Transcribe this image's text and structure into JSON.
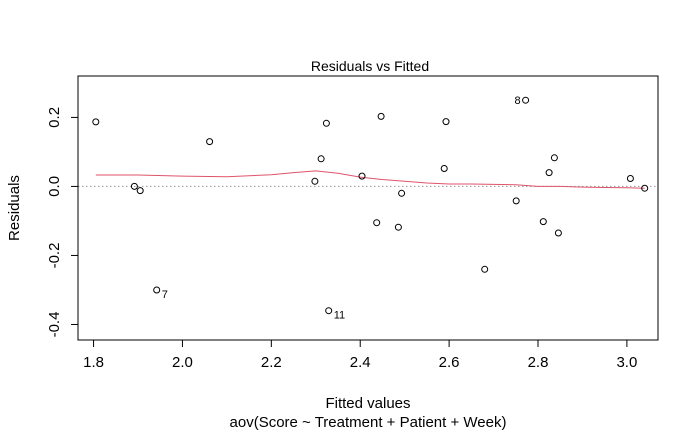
{
  "chart_data": {
    "type": "scatter",
    "title": "Residuals vs Fitted",
    "xlabel": "Fitted values",
    "subtitle": "aov(Score ~ Treatment + Patient + Week)",
    "ylabel": "Residuals",
    "xlim": [
      1.765,
      3.07
    ],
    "ylim": [
      -0.445,
      0.32
    ],
    "x_ticks": [
      1.8,
      2.0,
      2.2,
      2.4,
      2.6,
      2.8,
      3.0
    ],
    "x_tick_labels": [
      "1.8",
      "2.0",
      "2.2",
      "2.4",
      "2.6",
      "2.8",
      "3.0"
    ],
    "y_ticks": [
      -0.4,
      -0.2,
      0.0,
      0.2
    ],
    "y_tick_labels": [
      "-0.4",
      "-0.2",
      "0.0",
      "0.2"
    ],
    "reference_line": {
      "y": 0,
      "style": "dotted",
      "color": "#999999"
    },
    "points": [
      {
        "x": 1.805,
        "y": 0.187
      },
      {
        "x": 1.892,
        "y": 0.0
      },
      {
        "x": 1.905,
        "y": -0.012
      },
      {
        "x": 1.942,
        "y": -0.3,
        "label": "7"
      },
      {
        "x": 2.061,
        "y": 0.13
      },
      {
        "x": 2.298,
        "y": 0.015
      },
      {
        "x": 2.312,
        "y": 0.08
      },
      {
        "x": 2.324,
        "y": 0.183
      },
      {
        "x": 2.329,
        "y": -0.36,
        "label": "11"
      },
      {
        "x": 2.404,
        "y": 0.03
      },
      {
        "x": 2.437,
        "y": -0.105
      },
      {
        "x": 2.447,
        "y": 0.203
      },
      {
        "x": 2.486,
        "y": -0.118
      },
      {
        "x": 2.493,
        "y": -0.02
      },
      {
        "x": 2.589,
        "y": 0.052
      },
      {
        "x": 2.593,
        "y": 0.188
      },
      {
        "x": 2.68,
        "y": -0.24
      },
      {
        "x": 2.751,
        "y": -0.042
      },
      {
        "x": 2.772,
        "y": 0.25,
        "label": "8"
      },
      {
        "x": 2.812,
        "y": -0.102
      },
      {
        "x": 2.825,
        "y": 0.04
      },
      {
        "x": 2.837,
        "y": 0.083
      },
      {
        "x": 2.846,
        "y": -0.135
      },
      {
        "x": 3.008,
        "y": 0.023
      },
      {
        "x": 3.04,
        "y": -0.005
      }
    ],
    "smooth_line": {
      "color": "#df536b",
      "x": [
        1.805,
        1.9,
        2.0,
        2.1,
        2.2,
        2.25,
        2.3,
        2.35,
        2.4,
        2.45,
        2.5,
        2.55,
        2.6,
        2.65,
        2.7,
        2.75,
        2.8,
        2.85,
        2.9,
        2.95,
        3.0,
        3.04
      ],
      "y": [
        0.033,
        0.033,
        0.03,
        0.028,
        0.034,
        0.04,
        0.045,
        0.038,
        0.027,
        0.02,
        0.015,
        0.01,
        0.007,
        0.007,
        0.006,
        0.005,
        0.0,
        0.0,
        -0.002,
        -0.003,
        -0.004,
        -0.005
      ]
    }
  }
}
